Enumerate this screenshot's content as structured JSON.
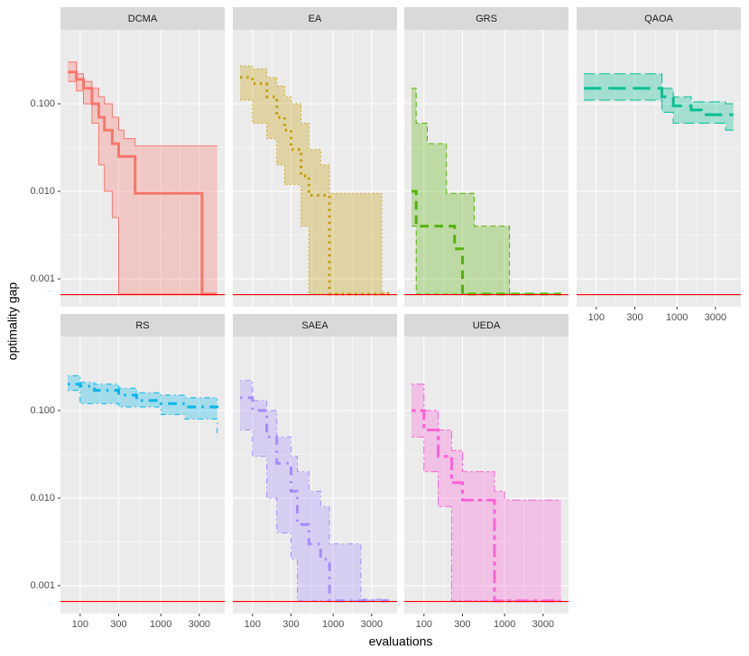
{
  "chart_data": {
    "type": "line",
    "x_label": "evaluations",
    "y_label": "optimality gap",
    "log_x": true,
    "log_y": true,
    "xlim": [
      57,
      6200
    ],
    "ylim": [
      0.00048,
      0.7
    ],
    "xticks": [
      100,
      300,
      1000,
      3000
    ],
    "yticks": [
      {
        "value": 0.001,
        "label": "0.001"
      },
      {
        "value": 0.01,
        "label": "0.010"
      },
      {
        "value": 0.1,
        "label": "0.100"
      }
    ],
    "grid": true,
    "hline": 0.00066,
    "hline_color": "#ff0000",
    "panels": [
      {
        "name": "DCMA",
        "color": "#F8766D",
        "linetype": "solid",
        "x": [
          70,
          90,
          110,
          140,
          170,
          200,
          250,
          300,
          350,
          480,
          3250,
          3500,
          5000
        ],
        "values": [
          0.23,
          0.19,
          0.15,
          0.1,
          0.07,
          0.05,
          0.035,
          0.025,
          0.025,
          0.0095,
          0.00067,
          0.00067,
          0.00067
        ],
        "lower": [
          0.18,
          0.14,
          0.1,
          0.06,
          0.02,
          0.01,
          0.005,
          0.00067,
          0.00067,
          0.00067,
          0.00067,
          0.00067,
          0.00067
        ],
        "upper": [
          0.3,
          0.22,
          0.18,
          0.15,
          0.12,
          0.1,
          0.07,
          0.05,
          0.04,
          0.033,
          0.033,
          0.033,
          0.033
        ]
      },
      {
        "name": "EA",
        "color": "#C49A00",
        "linetype": "dotted",
        "x": [
          70,
          100,
          150,
          200,
          250,
          300,
          400,
          500,
          700,
          900,
          4000,
          5000
        ],
        "values": [
          0.2,
          0.17,
          0.12,
          0.07,
          0.05,
          0.03,
          0.015,
          0.009,
          0.009,
          0.00067,
          0.00067,
          0.00067
        ],
        "lower": [
          0.11,
          0.06,
          0.04,
          0.02,
          0.012,
          0.012,
          0.004,
          0.00067,
          0.00067,
          0.00067,
          0.00067,
          0.00067
        ],
        "upper": [
          0.27,
          0.25,
          0.2,
          0.16,
          0.12,
          0.1,
          0.06,
          0.03,
          0.02,
          0.0095,
          0.0007,
          0.0007
        ]
      },
      {
        "name": "GRS",
        "color": "#53B400",
        "linetype": "dashed",
        "x": [
          70,
          80,
          110,
          190,
          240,
          300,
          420,
          1150,
          5000
        ],
        "values": [
          0.01,
          0.004,
          0.004,
          0.004,
          0.0022,
          0.00067,
          0.00067,
          0.00067,
          0.00067
        ],
        "lower": [
          0.004,
          0.00067,
          0.00067,
          0.00067,
          0.00067,
          0.00067,
          0.00067,
          0.00067,
          0.00067
        ],
        "upper": [
          0.15,
          0.06,
          0.035,
          0.0095,
          0.0095,
          0.0095,
          0.004,
          0.00067,
          0.00067
        ]
      },
      {
        "name": "QAOA",
        "color": "#00C094",
        "linetype": "longdash",
        "x": [
          70,
          650,
          900,
          1500,
          2000,
          4000,
          5000
        ],
        "values": [
          0.15,
          0.12,
          0.095,
          0.085,
          0.075,
          0.075,
          0.075
        ],
        "lower": [
          0.11,
          0.08,
          0.06,
          0.06,
          0.06,
          0.05,
          0.047
        ],
        "upper": [
          0.22,
          0.15,
          0.12,
          0.105,
          0.105,
          0.1,
          0.1
        ]
      },
      {
        "name": "RS",
        "color": "#00B6EB",
        "linetype": "dotdash",
        "x": [
          70,
          100,
          150,
          300,
          500,
          1000,
          2000,
          5000
        ],
        "values": [
          0.2,
          0.19,
          0.17,
          0.15,
          0.13,
          0.12,
          0.11,
          0.1
        ],
        "lower": [
          0.17,
          0.12,
          0.12,
          0.11,
          0.11,
          0.09,
          0.08,
          0.05
        ],
        "upper": [
          0.25,
          0.21,
          0.2,
          0.18,
          0.16,
          0.15,
          0.14,
          0.13
        ]
      },
      {
        "name": "SAEA",
        "color": "#A58AFF",
        "linetype": "dotdash",
        "x": [
          70,
          100,
          150,
          200,
          300,
          360,
          500,
          700,
          900,
          2200,
          5000
        ],
        "values": [
          0.14,
          0.1,
          0.05,
          0.025,
          0.012,
          0.005,
          0.003,
          0.002,
          0.00067,
          0.00067,
          0.00067
        ],
        "lower": [
          0.06,
          0.03,
          0.01,
          0.004,
          0.002,
          0.00067,
          0.00067,
          0.00067,
          0.00067,
          0.00067,
          0.00067
        ],
        "upper": [
          0.22,
          0.13,
          0.1,
          0.05,
          0.03,
          0.02,
          0.012,
          0.008,
          0.003,
          0.0007,
          0.0007
        ]
      },
      {
        "name": "UEDA",
        "color": "#FB61D7",
        "linetype": "twodash",
        "x": [
          70,
          100,
          150,
          220,
          300,
          750,
          1000,
          5000
        ],
        "values": [
          0.1,
          0.06,
          0.03,
          0.015,
          0.0095,
          0.00067,
          0.00067,
          0.00067
        ],
        "lower": [
          0.05,
          0.02,
          0.008,
          0.00067,
          0.00067,
          0.00067,
          0.00067,
          0.00067
        ],
        "upper": [
          0.2,
          0.1,
          0.06,
          0.035,
          0.02,
          0.012,
          0.0095,
          0.0095
        ]
      }
    ]
  }
}
